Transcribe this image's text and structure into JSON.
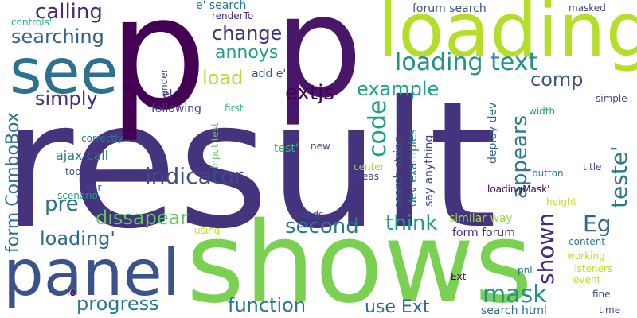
{
  "words": [
    {
      "text": "result",
      "color": "#46337e",
      "vertical": false
    },
    {
      "text": "p",
      "color": "#440154",
      "vertical": false
    },
    {
      "text": "p",
      "color": "#481769",
      "vertical": false
    },
    {
      "text": "shows",
      "color": "#7ad151",
      "vertical": false
    },
    {
      "text": "loading",
      "color": "#b5de2b",
      "vertical": false
    },
    {
      "text": "see",
      "color": "#2c728e",
      "vertical": false
    },
    {
      "text": "panel",
      "color": "#3b528b",
      "vertical": false
    },
    {
      "text": "loading text",
      "color": "#21918c",
      "vertical": false
    },
    {
      "text": "calling",
      "color": "#482878",
      "vertical": false
    },
    {
      "text": "searching",
      "color": "#33638d",
      "vertical": false
    },
    {
      "text": "change",
      "color": "#472d7b",
      "vertical": false
    },
    {
      "text": "annoys",
      "color": "#1f9e89",
      "vertical": false
    },
    {
      "text": "load",
      "color": "#b5de2b",
      "vertical": false
    },
    {
      "text": "comp",
      "color": "#3b528b",
      "vertical": false
    },
    {
      "text": "example",
      "color": "#1fa188",
      "vertical": false
    },
    {
      "text": "extjs",
      "color": "#440154",
      "vertical": false
    },
    {
      "text": "code",
      "color": "#1f9e89",
      "vertical": true
    },
    {
      "text": "appears",
      "color": "#2a788e",
      "vertical": true
    },
    {
      "text": "simply",
      "color": "#472d7b",
      "vertical": false
    },
    {
      "text": "indicator",
      "color": "#3e4989",
      "vertical": false
    },
    {
      "text": "pre",
      "color": "#2c728e",
      "vertical": false
    },
    {
      "text": "form ComboBox",
      "color": "#2c728e",
      "vertical": true
    },
    {
      "text": "dissapear",
      "color": "#5ec962",
      "vertical": false
    },
    {
      "text": "second",
      "color": "#2a788e",
      "vertical": false
    },
    {
      "text": "think",
      "color": "#1f9e89",
      "vertical": false
    },
    {
      "text": "loading'",
      "color": "#31688e",
      "vertical": false
    },
    {
      "text": "progress",
      "color": "#2a788e",
      "vertical": false
    },
    {
      "text": "function",
      "color": "#2a788e",
      "vertical": false
    },
    {
      "text": "mask",
      "color": "#21918c",
      "vertical": false
    },
    {
      "text": "use Ext",
      "color": "#31688e",
      "vertical": false
    },
    {
      "text": "teste'",
      "color": "#2a788e",
      "vertical": true
    },
    {
      "text": "shown",
      "color": "#482878",
      "vertical": true
    },
    {
      "text": "Eg",
      "color": "#31688e",
      "vertical": false
    },
    {
      "text": "forum search",
      "color": "#3b528b",
      "vertical": false
    },
    {
      "text": "masked",
      "color": "#3e4989",
      "vertical": false
    },
    {
      "text": "title",
      "color": "#3b528b",
      "vertical": false
    },
    {
      "text": "e' search",
      "color": "#2a788e",
      "vertical": false
    },
    {
      "text": "renderTo",
      "color": "#482878",
      "vertical": false
    },
    {
      "text": "controls'",
      "color": "#25ab82",
      "vertical": false
    },
    {
      "text": "render",
      "color": "#3e4989",
      "vertical": true
    },
    {
      "text": "add e'",
      "color": "#39568c",
      "vertical": false
    },
    {
      "text": "el",
      "color": "#453781",
      "vertical": false
    },
    {
      "text": "following",
      "color": "#443983",
      "vertical": false
    },
    {
      "text": "first",
      "color": "#3dbc74",
      "vertical": false
    },
    {
      "text": "input test",
      "color": "#5ec962",
      "vertical": true
    },
    {
      "text": "correctly",
      "color": "#277f8e",
      "vertical": false
    },
    {
      "text": "ajax call",
      "color": "#2a788e",
      "vertical": false
    },
    {
      "text": "test'",
      "color": "#37b878",
      "vertical": false
    },
    {
      "text": "new",
      "color": "#3e4989",
      "vertical": false
    },
    {
      "text": "top",
      "color": "#3b528b",
      "vertical": false
    },
    {
      "text": "var",
      "color": "#3e4989",
      "vertical": false
    },
    {
      "text": "scenario",
      "color": "#1f9e89",
      "vertical": false
    },
    {
      "text": "ideas",
      "color": "#424086",
      "vertical": false
    },
    {
      "text": "center",
      "color": "#a0da39",
      "vertical": false
    },
    {
      "text": "search string",
      "color": "#3b528b",
      "vertical": true
    },
    {
      "text": "dev examples",
      "color": "#2c728e",
      "vertical": true
    },
    {
      "text": "say anything",
      "color": "#3e4989",
      "vertical": true
    },
    {
      "text": "deploy dev",
      "color": "#31688e",
      "vertical": true
    },
    {
      "text": "loadingMask'",
      "color": "#440154",
      "vertical": false
    },
    {
      "text": "height",
      "color": "#bddf26",
      "vertical": false
    },
    {
      "text": "similar way",
      "color": "#a0da39",
      "vertical": false
    },
    {
      "text": "form forum",
      "color": "#482878",
      "vertical": false
    },
    {
      "text": "needs",
      "color": "#3e4989",
      "vertical": false
    },
    {
      "text": "using",
      "color": "#c2df23",
      "vertical": false
    },
    {
      "text": "button",
      "color": "#2a788e",
      "vertical": false
    },
    {
      "text": "width",
      "color": "#20a486",
      "vertical": false
    },
    {
      "text": "simple",
      "color": "#3e4989",
      "vertical": false
    },
    {
      "text": "content",
      "color": "#2a788e",
      "vertical": false
    },
    {
      "text": "working",
      "color": "#b5de2b",
      "vertical": false
    },
    {
      "text": "listeners",
      "color": "#bddf26",
      "vertical": false
    },
    {
      "text": "event",
      "color": "#bddf26",
      "vertical": false
    },
    {
      "text": "Ext",
      "color": "#440154",
      "vertical": false
    },
    {
      "text": "pnl",
      "color": "#2a788e",
      "vertical": false
    },
    {
      "text": "ie",
      "color": "#440154",
      "vertical": false
    },
    {
      "text": "search html",
      "color": "#2c728e",
      "vertical": false
    },
    {
      "text": "fine",
      "color": "#3e4989",
      "vertical": false
    },
    {
      "text": "time",
      "color": "#3e4989",
      "vertical": false
    }
  ]
}
